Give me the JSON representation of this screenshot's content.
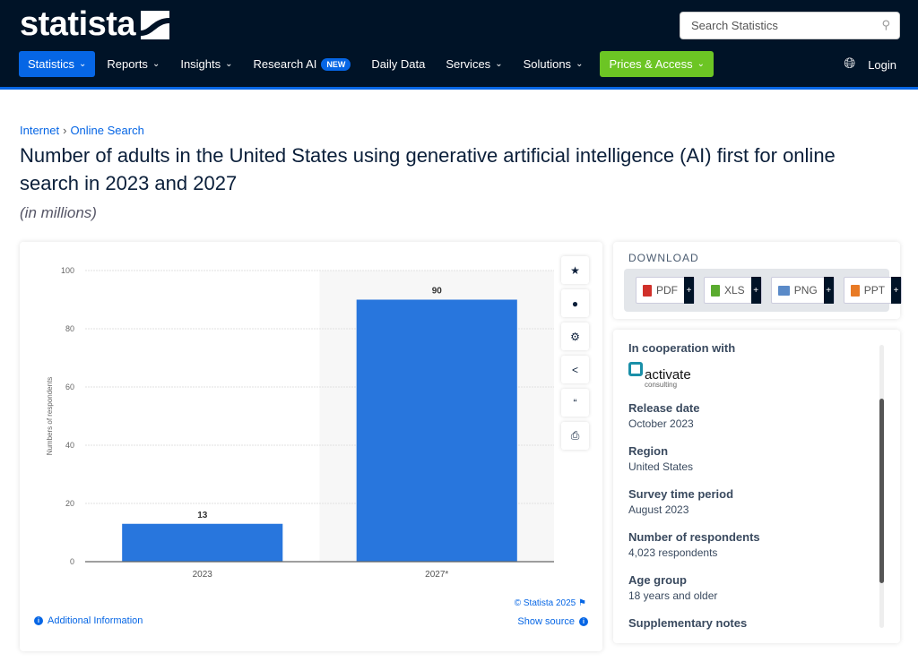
{
  "header": {
    "logo": "statista",
    "search_placeholder": "Search Statistics",
    "nav": [
      {
        "label": "Statistics"
      },
      {
        "label": "Reports"
      },
      {
        "label": "Insights"
      },
      {
        "label": "Research AI",
        "badge": "NEW"
      },
      {
        "label": "Daily Data"
      },
      {
        "label": "Services"
      },
      {
        "label": "Solutions"
      },
      {
        "label": "Prices & Access"
      }
    ],
    "login": "Login",
    "accent": "#0666e5",
    "prices_color": "#6cc524"
  },
  "breadcrumb": [
    "Internet",
    "Online Search"
  ],
  "title": "Number of adults in the United States using generative artificial intelligence (AI) first for online search in 2023 and 2027",
  "subtitle": "(in millions)",
  "chart_data": {
    "type": "bar",
    "categories": [
      "2023",
      "2027*"
    ],
    "values": [
      13,
      90
    ],
    "ylabel": "Numbers of respondents",
    "ylim": [
      0,
      100
    ],
    "yticks": [
      0,
      20,
      40,
      60,
      80,
      100
    ],
    "grid": true,
    "bar_color": "#2876dd"
  },
  "chart_footer": {
    "copyright": "© Statista 2025",
    "show_source": "Show source",
    "additional_info": "Additional Information"
  },
  "tools": [
    "star-icon",
    "bell-icon",
    "gear-icon",
    "share-icon",
    "quote-icon",
    "print-icon"
  ],
  "download": {
    "title": "DOWNLOAD",
    "formats": [
      {
        "label": "PDF",
        "color": "#d0302a"
      },
      {
        "label": "XLS",
        "color": "#5aab2f"
      },
      {
        "label": "PNG",
        "color": "#5a8ac8"
      },
      {
        "label": "PPT",
        "color": "#e87a25"
      }
    ]
  },
  "details": {
    "cooperation_label": "In cooperation with",
    "partner": "activate",
    "partner_sub": "consulting",
    "items": [
      {
        "label": "Release date",
        "value": "October 2023"
      },
      {
        "label": "Region",
        "value": "United States"
      },
      {
        "label": "Survey time period",
        "value": "August 2023"
      },
      {
        "label": "Number of respondents",
        "value": "4,023 respondents"
      },
      {
        "label": "Age group",
        "value": "18 years and older"
      },
      {
        "label": "Supplementary notes",
        "value": ""
      }
    ]
  }
}
